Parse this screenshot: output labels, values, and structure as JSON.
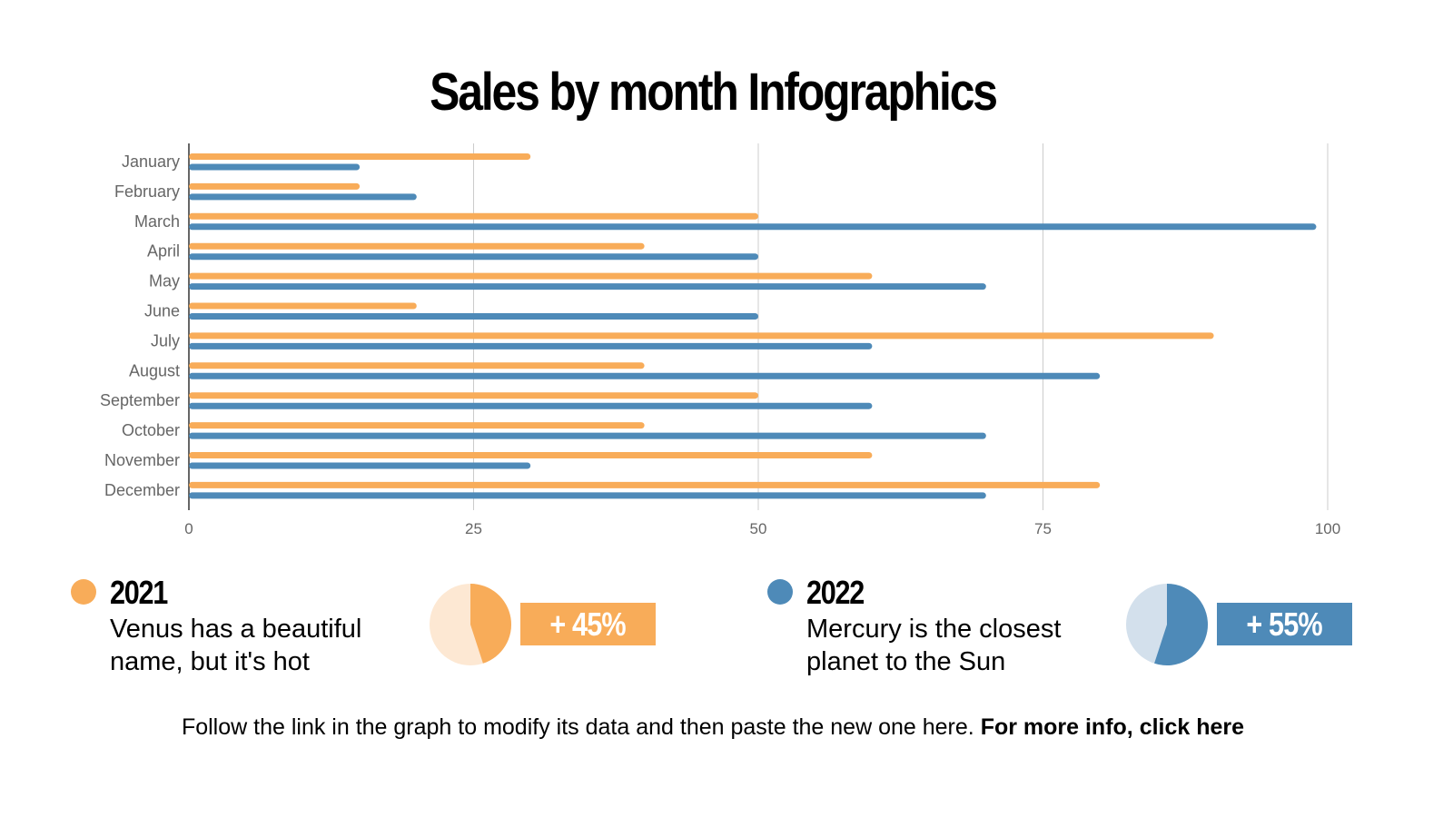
{
  "title": "Sales by month Infographics",
  "colors": {
    "2021": "#F8AC59",
    "2021_light": "#FDE8D3",
    "2022": "#4E8AB8",
    "2022_light": "#D3E0EC",
    "grid": "#cccccc",
    "axis_text": "#666666"
  },
  "chart_data": {
    "type": "bar",
    "orientation": "horizontal",
    "categories": [
      "January",
      "February",
      "March",
      "April",
      "May",
      "June",
      "July",
      "August",
      "September",
      "October",
      "November",
      "December"
    ],
    "series": [
      {
        "name": "2021",
        "color": "#F8AC59",
        "values": [
          30,
          15,
          50,
          40,
          60,
          20,
          90,
          40,
          50,
          40,
          60,
          80
        ]
      },
      {
        "name": "2022",
        "color": "#4E8AB8",
        "values": [
          15,
          20,
          99,
          50,
          70,
          50,
          60,
          80,
          60,
          70,
          30,
          70
        ]
      }
    ],
    "xlim": [
      0,
      100
    ],
    "xticks": [
      "0",
      "25",
      "50",
      "75",
      "100"
    ],
    "grid": true
  },
  "legend": [
    {
      "year": "2021",
      "description": "Venus has a beautiful name, but it's hot",
      "percent_label": "+ 45%",
      "pie_fraction": 0.45
    },
    {
      "year": "2022",
      "description": "Mercury is the closest planet to the Sun",
      "percent_label": "+ 55%",
      "pie_fraction": 0.55
    }
  ],
  "footer": {
    "text": "Follow the link in the graph to modify its data and then paste the new one here.",
    "link": "For more info, click here"
  }
}
